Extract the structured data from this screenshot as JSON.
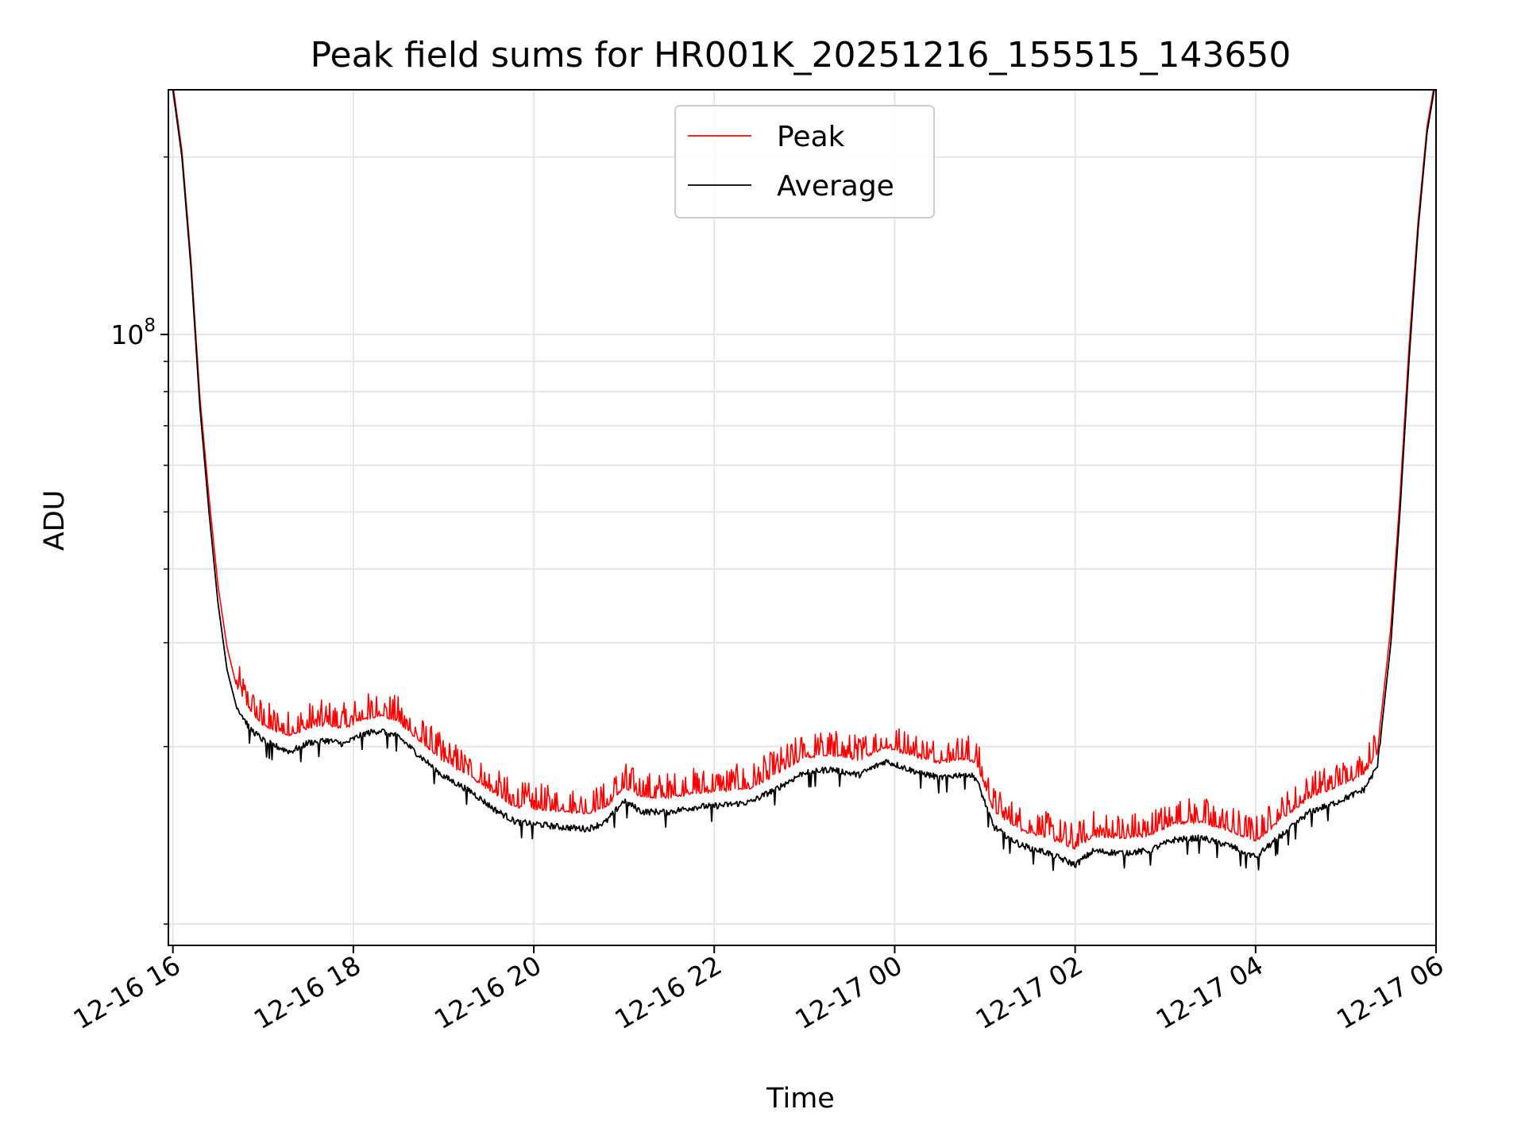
{
  "chart_data": {
    "type": "line",
    "title": "Peak field sums for HR001K_20251216_155515_143650",
    "xlabel": "Time",
    "ylabel": "ADU",
    "yscale": "log",
    "ylim": [
      9200000,
      260000000
    ],
    "xlim": [
      -0.05,
      14.0
    ],
    "x_unit": "hours since 12-16 16:00",
    "grid": true,
    "legend_position": "upper-center",
    "x_ticks": [
      {
        "value": 0,
        "label": "12-16 16"
      },
      {
        "value": 2,
        "label": "12-16 18"
      },
      {
        "value": 4,
        "label": "12-16 20"
      },
      {
        "value": 6,
        "label": "12-16 22"
      },
      {
        "value": 8,
        "label": "12-17 00"
      },
      {
        "value": 10,
        "label": "12-17 02"
      },
      {
        "value": 12,
        "label": "12-17 04"
      },
      {
        "value": 14,
        "label": "12-17 06"
      }
    ],
    "y_major_ticks": [
      {
        "value": 100000000,
        "base": "10",
        "exponent": "8"
      }
    ],
    "y_minor_ticks": [
      10000000,
      20000000,
      30000000,
      40000000,
      50000000,
      60000000,
      70000000,
      80000000,
      90000000,
      200000000
    ],
    "series": [
      {
        "name": "Average",
        "color": "#000000",
        "points": [
          [
            0.0,
            260000000
          ],
          [
            0.1,
            200000000
          ],
          [
            0.2,
            130000000
          ],
          [
            0.3,
            75000000
          ],
          [
            0.4,
            50000000
          ],
          [
            0.5,
            35000000
          ],
          [
            0.6,
            27000000
          ],
          [
            0.7,
            23500000
          ],
          [
            0.85,
            21500000
          ],
          [
            1.0,
            20500000
          ],
          [
            1.15,
            20000000
          ],
          [
            1.3,
            19600000
          ],
          [
            1.5,
            20300000
          ],
          [
            1.7,
            20500000
          ],
          [
            1.9,
            20200000
          ],
          [
            2.1,
            21000000
          ],
          [
            2.3,
            21300000
          ],
          [
            2.5,
            20800000
          ],
          [
            2.7,
            19500000
          ],
          [
            3.0,
            17800000
          ],
          [
            3.3,
            16800000
          ],
          [
            3.55,
            15700000
          ],
          [
            3.8,
            14900000
          ],
          [
            4.0,
            14800000
          ],
          [
            4.3,
            14600000
          ],
          [
            4.6,
            14500000
          ],
          [
            4.8,
            14900000
          ],
          [
            5.0,
            16200000
          ],
          [
            5.2,
            15500000
          ],
          [
            5.5,
            15500000
          ],
          [
            5.8,
            15800000
          ],
          [
            6.1,
            15900000
          ],
          [
            6.4,
            16100000
          ],
          [
            6.7,
            17000000
          ],
          [
            7.0,
            18100000
          ],
          [
            7.3,
            18300000
          ],
          [
            7.6,
            17900000
          ],
          [
            7.9,
            18900000
          ],
          [
            8.2,
            18200000
          ],
          [
            8.5,
            17700000
          ],
          [
            8.8,
            18000000
          ],
          [
            8.9,
            17700000
          ],
          [
            9.1,
            14600000
          ],
          [
            9.4,
            13600000
          ],
          [
            9.7,
            13200000
          ],
          [
            9.9,
            12800000
          ],
          [
            10.0,
            12600000
          ],
          [
            10.2,
            13300000
          ],
          [
            10.5,
            13200000
          ],
          [
            10.8,
            13300000
          ],
          [
            11.1,
            13900000
          ],
          [
            11.4,
            14000000
          ],
          [
            11.7,
            13600000
          ],
          [
            12.0,
            13000000
          ],
          [
            12.3,
            14200000
          ],
          [
            12.6,
            15500000
          ],
          [
            12.9,
            16100000
          ],
          [
            13.2,
            16900000
          ],
          [
            13.35,
            18500000
          ],
          [
            13.5,
            30000000
          ],
          [
            13.6,
            50000000
          ],
          [
            13.7,
            90000000
          ],
          [
            13.8,
            150000000
          ],
          [
            13.9,
            220000000
          ],
          [
            13.98,
            260000000
          ]
        ]
      },
      {
        "name": "Peak",
        "color": "#ff0000",
        "points": [
          [
            0.0,
            265000000
          ],
          [
            0.1,
            205000000
          ],
          [
            0.2,
            134000000
          ],
          [
            0.3,
            78000000
          ],
          [
            0.4,
            53000000
          ],
          [
            0.5,
            37500000
          ],
          [
            0.6,
            29500000
          ],
          [
            0.7,
            25500000
          ],
          [
            0.85,
            23200000
          ],
          [
            1.0,
            21900000
          ],
          [
            1.15,
            21400000
          ],
          [
            1.3,
            21000000
          ],
          [
            1.5,
            21700000
          ],
          [
            1.7,
            21900000
          ],
          [
            1.9,
            21600000
          ],
          [
            2.1,
            22400000
          ],
          [
            2.3,
            22700000
          ],
          [
            2.5,
            22200000
          ],
          [
            2.7,
            20800000
          ],
          [
            3.0,
            19000000
          ],
          [
            3.3,
            17900000
          ],
          [
            3.55,
            16800000
          ],
          [
            3.8,
            15900000
          ],
          [
            4.0,
            15800000
          ],
          [
            4.3,
            15600000
          ],
          [
            4.6,
            15500000
          ],
          [
            4.8,
            15900000
          ],
          [
            5.0,
            17200000
          ],
          [
            5.2,
            16500000
          ],
          [
            5.5,
            16500000
          ],
          [
            5.8,
            16800000
          ],
          [
            6.1,
            16900000
          ],
          [
            6.4,
            17100000
          ],
          [
            6.7,
            18100000
          ],
          [
            7.0,
            19300000
          ],
          [
            7.3,
            19500000
          ],
          [
            7.6,
            19100000
          ],
          [
            7.9,
            20100000
          ],
          [
            8.2,
            19400000
          ],
          [
            8.5,
            18900000
          ],
          [
            8.8,
            19200000
          ],
          [
            8.9,
            18900000
          ],
          [
            9.1,
            15600000
          ],
          [
            9.4,
            14500000
          ],
          [
            9.7,
            14100000
          ],
          [
            9.9,
            13700000
          ],
          [
            10.0,
            13500000
          ],
          [
            10.2,
            14200000
          ],
          [
            10.5,
            14100000
          ],
          [
            10.8,
            14200000
          ],
          [
            11.1,
            14900000
          ],
          [
            11.4,
            15000000
          ],
          [
            11.7,
            14500000
          ],
          [
            12.0,
            13900000
          ],
          [
            12.3,
            15200000
          ],
          [
            12.6,
            16500000
          ],
          [
            12.9,
            17200000
          ],
          [
            13.2,
            18000000
          ],
          [
            13.35,
            19700000
          ],
          [
            13.5,
            32000000
          ],
          [
            13.6,
            53000000
          ],
          [
            13.7,
            95000000
          ],
          [
            13.8,
            155000000
          ],
          [
            13.9,
            225000000
          ],
          [
            13.98,
            265000000
          ]
        ]
      }
    ],
    "legend": [
      {
        "name": "Peak",
        "color": "#ff0000"
      },
      {
        "name": "Average",
        "color": "#000000"
      }
    ]
  }
}
